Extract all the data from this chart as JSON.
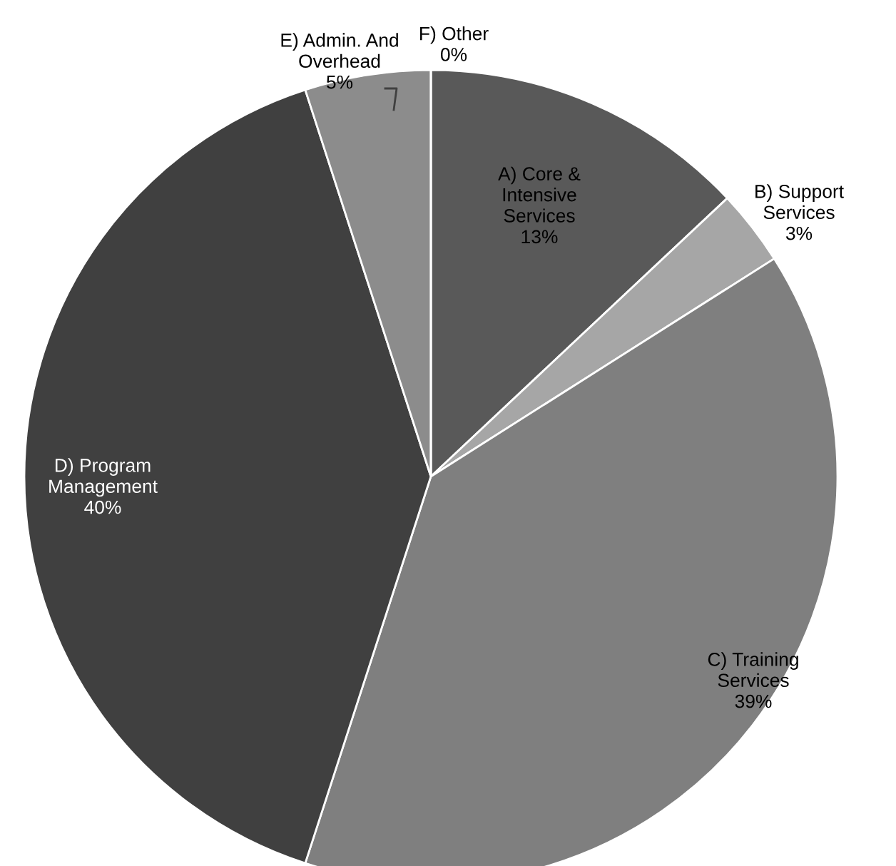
{
  "chart_data": {
    "type": "pie",
    "categories": [
      "A) Core &\nIntensive\nServices",
      "B) Support\nServices",
      "C) Training\nServices",
      "D) Program\nManagement",
      "E) Admin. And\nOverhead",
      "F) Other"
    ],
    "values": [
      13,
      3,
      39,
      40,
      5,
      0
    ],
    "value_labels": [
      "13%",
      "3%",
      "39%",
      "40%",
      "5%",
      "0%"
    ],
    "colors": [
      "#595959",
      "#a6a6a6",
      "#7f7f7f",
      "#404040",
      "#8c8c8c",
      "#bfbfbf"
    ],
    "legend": false
  }
}
